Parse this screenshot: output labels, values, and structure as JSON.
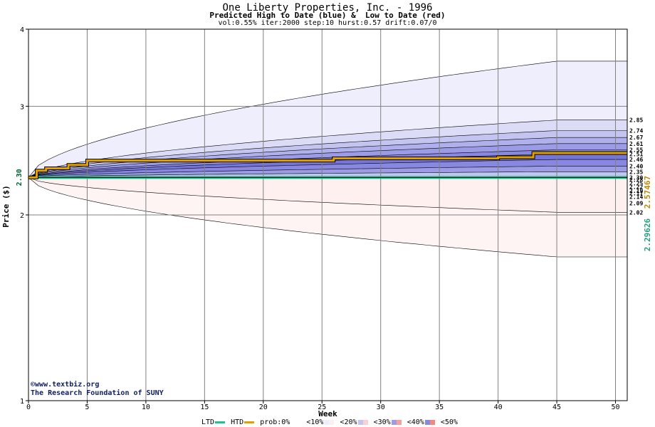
{
  "chart_data": {
    "type": "area",
    "title": "One Liberty Properties, Inc. - 1996",
    "subtitle": "Predicted High to Date (blue) &  Low to Date (red)",
    "params": "vol:0.55% iter:2000 step:10 hurst:0.57 drift:0.07/0",
    "xlabel": "Week",
    "ylabel": "Price ($)",
    "xlim": [
      0,
      51
    ],
    "ylim": [
      1,
      4
    ],
    "yscale": "log",
    "x_ticks": [
      0,
      5,
      10,
      15,
      20,
      25,
      30,
      35,
      40,
      45,
      50
    ],
    "y_ticks": [
      1,
      2,
      3,
      4
    ],
    "grid": true,
    "start_price": 2.3,
    "start_price_label": "2.30",
    "ltd_value_label": "2.29626",
    "htd_value_label": "2.57467",
    "upper_bands": [
      {
        "label": "2.85",
        "end": 2.85,
        "color": "#dcdcf6"
      },
      {
        "label": "2.74",
        "end": 2.74,
        "color": "#c4c4f0"
      },
      {
        "label": "2.67",
        "end": 2.67,
        "color": "#b0b0ec"
      },
      {
        "label": "2.61",
        "end": 2.61,
        "color": "#9c9ce6"
      },
      {
        "label": "2.55",
        "end": 2.55,
        "color": "#8888e0"
      },
      {
        "label": "2.51",
        "end": 2.51,
        "color": "#7474da"
      },
      {
        "label": "2.46",
        "end": 2.46,
        "color": "#8888e0"
      },
      {
        "label": "2.40",
        "end": 2.4,
        "color": "#9c9ce6"
      },
      {
        "label": "2.35",
        "end": 2.35,
        "color": "#c4c4f0"
      }
    ],
    "upper_outer": {
      "end": 3.55,
      "color": "#eeeefc"
    },
    "lower_bands": [
      {
        "label": "2.30",
        "end": 2.3,
        "color": "#ffd8d8"
      },
      {
        "label": "2.28",
        "end": 2.28,
        "color": "#f8b8b8"
      },
      {
        "label": "2.25",
        "end": 2.25,
        "color": "#f4a0a0"
      },
      {
        "label": "2.22",
        "end": 2.22,
        "color": "#f08888"
      },
      {
        "label": "2.19",
        "end": 2.19,
        "color": "#f4a0a0"
      },
      {
        "label": "2.17",
        "end": 2.17,
        "color": "#f8b8b8"
      },
      {
        "label": "2.14",
        "end": 2.14,
        "color": "#fcd0d0"
      },
      {
        "label": "2.09",
        "end": 2.09,
        "color": "#fde4e4"
      },
      {
        "label": "2.02",
        "end": 2.02,
        "color": "#fff0f0"
      }
    ],
    "lower_outer": {
      "end": 1.71,
      "color": "#fff4f4"
    },
    "htd_line": {
      "color": "#e0a000",
      "x": [
        0,
        0.7,
        1.5,
        3.4,
        5,
        26,
        40,
        43,
        51
      ],
      "y": [
        2.3,
        2.36,
        2.38,
        2.41,
        2.45,
        2.47,
        2.48,
        2.52,
        2.52
      ]
    },
    "ltd_line": {
      "color": "#20c090",
      "x": [
        0,
        51
      ],
      "y": [
        2.3,
        2.3
      ]
    }
  },
  "credit": {
    "line1": "www.textbiz.org",
    "line2": "The Research Foundation of SUNY"
  },
  "legend": {
    "ltd": "LTD",
    "htd": "HTD",
    "prob": "prob:0%",
    "p10": "<10%",
    "p20": "<20%",
    "p30": "<30%",
    "p40": "<40%",
    "p50": "<50%",
    "ltd_color": "#20c090",
    "htd_color": "#e0a000"
  }
}
